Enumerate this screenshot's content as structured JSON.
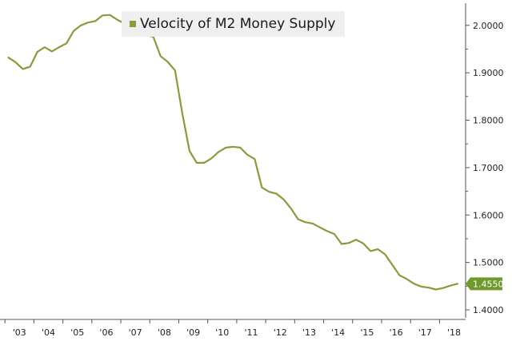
{
  "colors": {
    "series": "#8a9a3c",
    "badge": "#6e9a2c",
    "axis": "#555555",
    "legend_bg": "#efefef"
  },
  "chart_data": {
    "type": "line",
    "title": "",
    "xlabel": "",
    "ylabel": "",
    "legend": {
      "placement": "top-left",
      "entries": [
        "Velocity of M2 Money Supply"
      ]
    },
    "ylim": [
      1.4,
      2.04
    ],
    "xlim": [
      2002.55,
      2018.4
    ],
    "y_ticks": [
      1.4,
      1.5,
      1.6,
      1.7,
      1.8,
      1.9,
      2.0
    ],
    "y_tick_labels": [
      "1.4000",
      "1.5000",
      "1.6000",
      "1.7000",
      "1.8000",
      "1.9000",
      "2.0000"
    ],
    "x_ticks": [
      2003,
      2004,
      2005,
      2006,
      2007,
      2008,
      2009,
      2010,
      2011,
      2012,
      2013,
      2014,
      2015,
      2016,
      2017,
      2018
    ],
    "x_tick_labels": [
      "'03",
      "'04",
      "'05",
      "'06",
      "'07",
      "'08",
      "'09",
      "'10",
      "'11",
      "'12",
      "'13",
      "'14",
      "'15",
      "'16",
      "'17",
      "'18"
    ],
    "grid": false,
    "last_value_label": "1.4550",
    "series": [
      {
        "name": "Velocity of M2 Money Supply",
        "x": [
          2002.62,
          2002.87,
          2003.12,
          2003.37,
          2003.62,
          2003.87,
          2004.12,
          2004.37,
          2004.62,
          2004.87,
          2005.12,
          2005.37,
          2005.62,
          2005.87,
          2006.12,
          2006.37,
          2006.62,
          2006.87,
          2007.12,
          2007.37,
          2007.62,
          2007.87,
          2008.12,
          2008.37,
          2008.62,
          2008.87,
          2009.12,
          2009.37,
          2009.62,
          2009.87,
          2010.12,
          2010.37,
          2010.62,
          2010.87,
          2011.12,
          2011.37,
          2011.62,
          2011.87,
          2012.12,
          2012.37,
          2012.62,
          2012.87,
          2013.12,
          2013.37,
          2013.62,
          2013.87,
          2014.12,
          2014.37,
          2014.62,
          2014.87,
          2015.12,
          2015.37,
          2015.62,
          2015.87,
          2016.12,
          2016.37,
          2016.62,
          2016.87,
          2017.12,
          2017.37,
          2017.62,
          2017.87,
          2018.12
        ],
        "values": [
          1.932,
          1.922,
          1.908,
          1.913,
          1.944,
          1.954,
          1.945,
          1.954,
          1.962,
          1.988,
          2.0,
          2.006,
          2.009,
          2.021,
          2.022,
          2.012,
          2.004,
          1.997,
          1.987,
          1.979,
          1.976,
          1.935,
          1.923,
          1.905,
          1.815,
          1.735,
          1.71,
          1.71,
          1.719,
          1.733,
          1.742,
          1.744,
          1.742,
          1.727,
          1.718,
          1.658,
          1.649,
          1.645,
          1.633,
          1.614,
          1.591,
          1.585,
          1.582,
          1.574,
          1.566,
          1.56,
          1.539,
          1.541,
          1.548,
          1.54,
          1.524,
          1.528,
          1.517,
          1.495,
          1.473,
          1.465,
          1.455,
          1.449,
          1.447,
          1.443,
          1.446,
          1.451,
          1.455
        ]
      }
    ]
  }
}
